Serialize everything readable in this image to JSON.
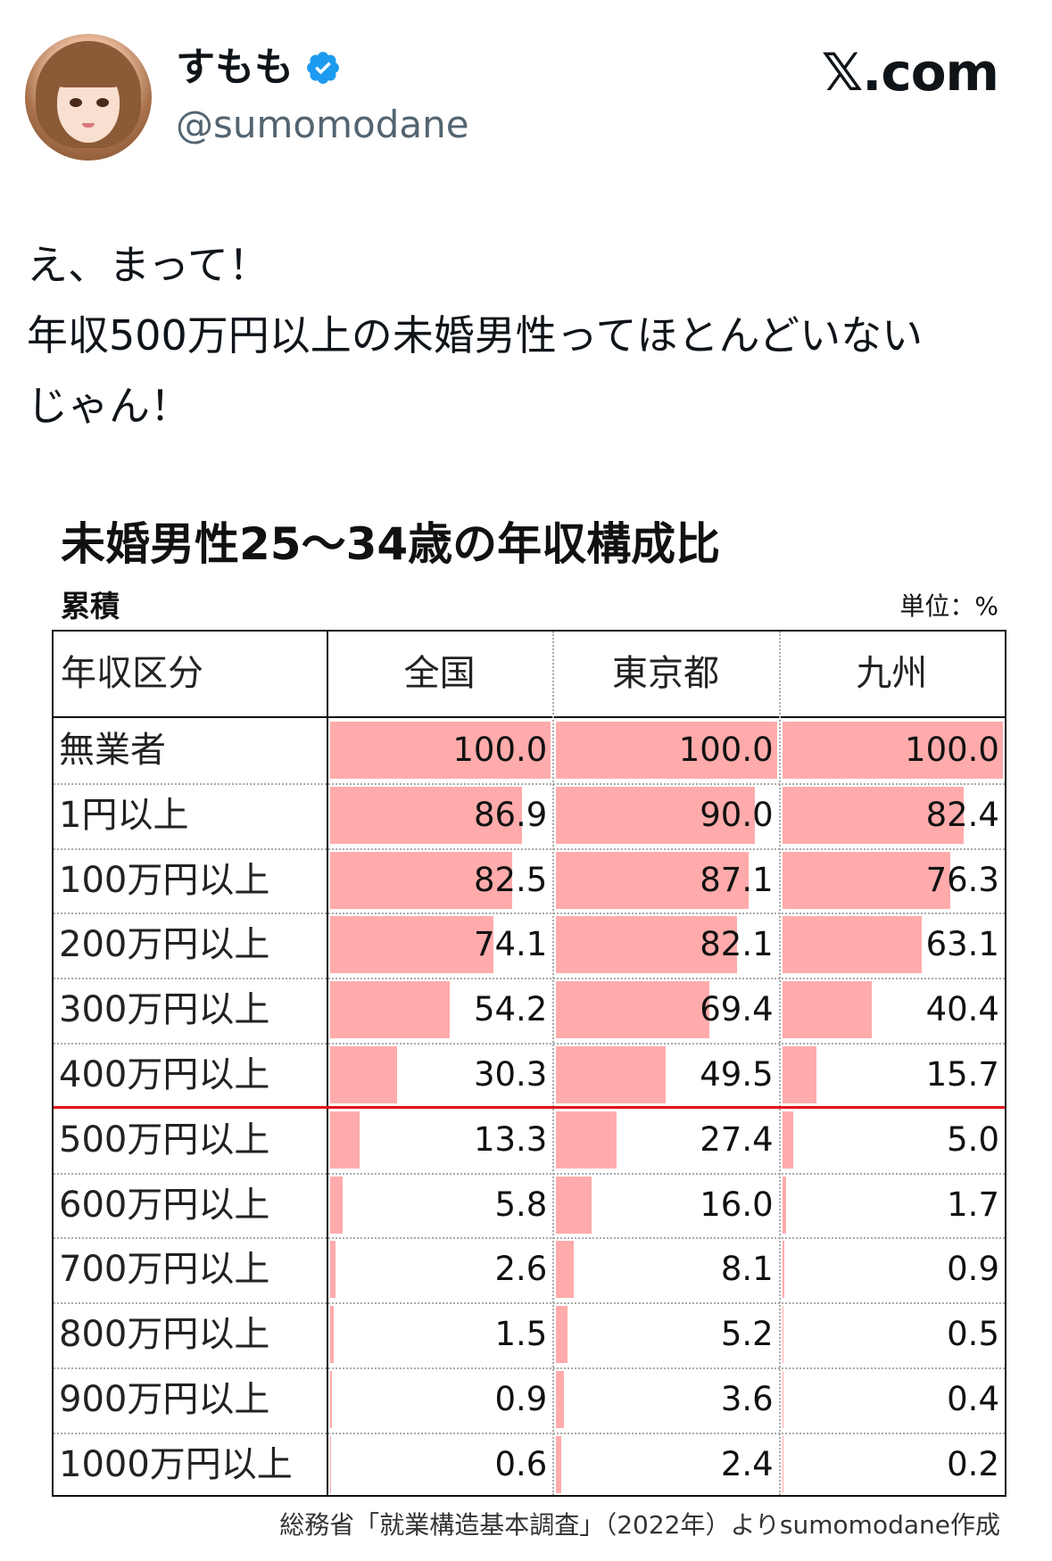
{
  "tweet": {
    "display_name": "すもも",
    "handle": "@sumomodane",
    "brand": "𝕏.com",
    "text": "え、まって！\n年収500万円以上の未婚男性ってほとんどいない\nじゃん！",
    "verified_color": "#1d9bf0",
    "icons": {
      "verified": "verified-badge-icon"
    }
  },
  "table": {
    "title": "未婚男性25～34歳の年収構成比",
    "subtitle": "累積",
    "unit": "単位：%",
    "header_label": "年収区分",
    "columns": [
      "全国",
      "東京都",
      "九州"
    ],
    "bar_color": "#ffabab",
    "divider_color": "#e0121b",
    "source": "総務省「就業構造基本調査」（2022年）よりsumomodane作成"
  },
  "chart_data": {
    "type": "table",
    "title": "未婚男性25～34歳の年収構成比",
    "subtitle": "累積",
    "unit": "単位：%",
    "row_header": "年収区分",
    "categories": [
      "無業者",
      "1円以上",
      "100万円以上",
      "200万円以上",
      "300万円以上",
      "400万円以上",
      "500万円以上",
      "600万円以上",
      "700万円以上",
      "800万円以上",
      "900万円以上",
      "1000万円以上"
    ],
    "series": [
      {
        "name": "全国",
        "values": [
          100.0,
          86.9,
          82.5,
          74.1,
          54.2,
          30.3,
          13.3,
          5.8,
          2.6,
          1.5,
          0.9,
          0.6
        ]
      },
      {
        "name": "東京都",
        "values": [
          100.0,
          90.0,
          87.1,
          82.1,
          69.4,
          49.5,
          27.4,
          16.0,
          8.1,
          5.2,
          3.6,
          2.4
        ]
      },
      {
        "name": "九州",
        "values": [
          100.0,
          82.4,
          76.3,
          63.1,
          40.4,
          15.7,
          5.0,
          1.7,
          0.9,
          0.5,
          0.4,
          0.2
        ]
      }
    ],
    "ylim": [
      0,
      100
    ],
    "source": "総務省「就業構造基本調査」（2022年）よりsumomodane作成"
  }
}
